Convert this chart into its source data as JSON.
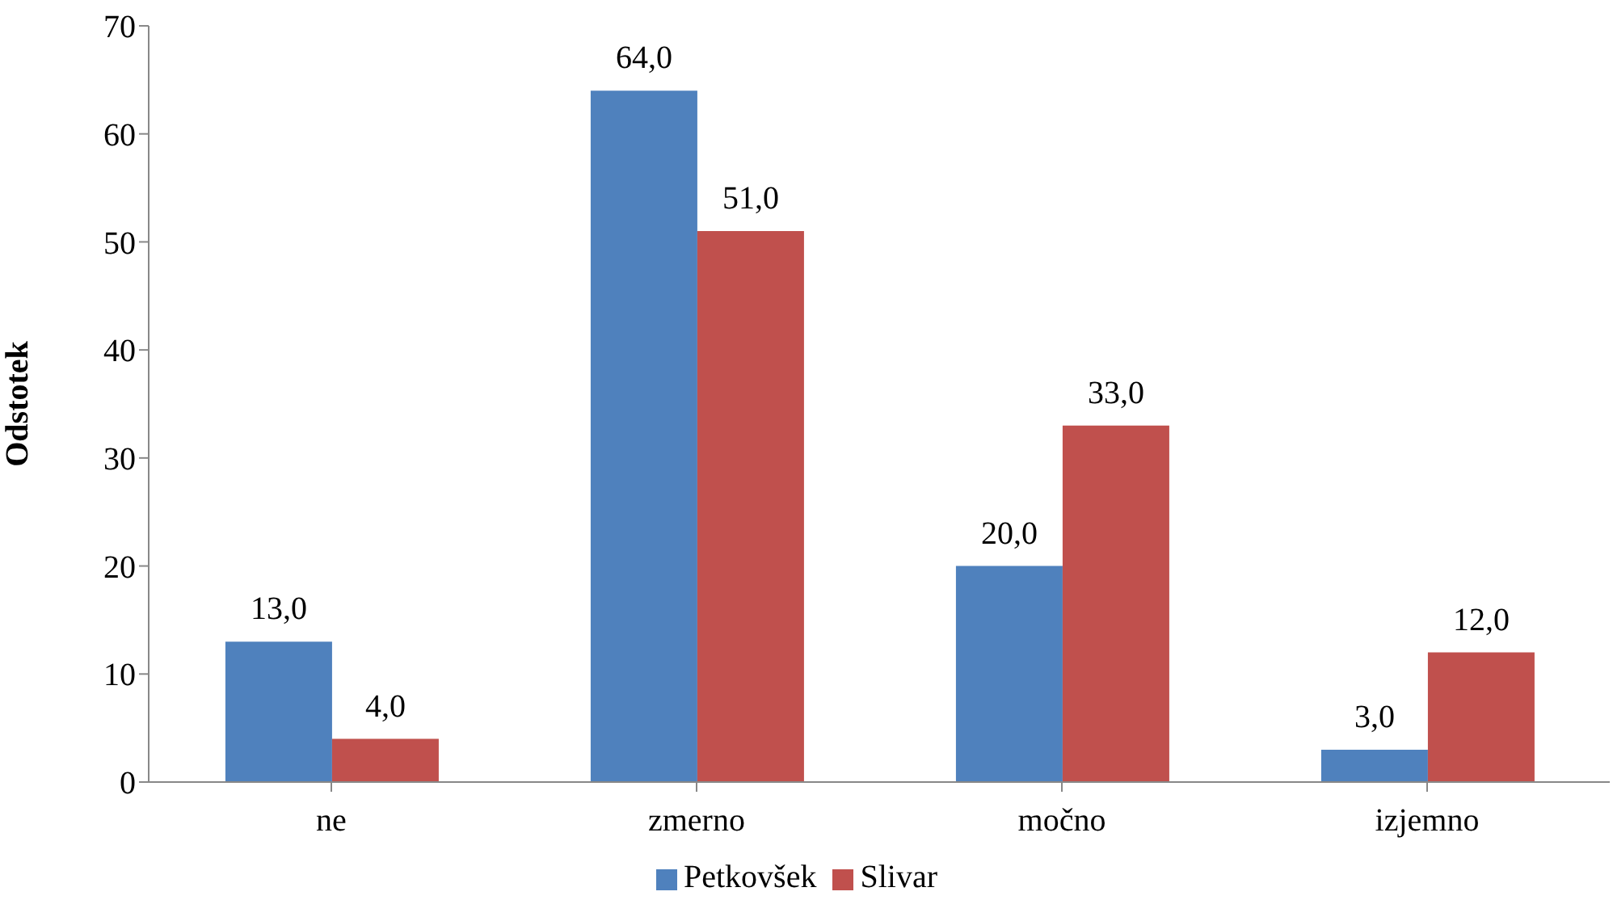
{
  "chart_data": {
    "type": "bar",
    "ylabel": "Odstotek",
    "categories": [
      "ne",
      "zmerno",
      "močno",
      "izjemno"
    ],
    "series": [
      {
        "name": "Petkovšek",
        "color": "#4f81bd",
        "values": [
          13,
          64,
          20,
          3
        ],
        "value_labels": [
          "13,0",
          "64,0",
          "20,0",
          "3,0"
        ]
      },
      {
        "name": "Slivar",
        "color": "#c0504d",
        "values": [
          4,
          51,
          33,
          12
        ],
        "value_labels": [
          "4,0",
          "51,0",
          "33,0",
          "12,0"
        ]
      }
    ],
    "ylim": [
      0,
      70
    ],
    "yticks": [
      0,
      10,
      20,
      30,
      40,
      50,
      60,
      70
    ],
    "grid": false,
    "legend": "bottom"
  }
}
